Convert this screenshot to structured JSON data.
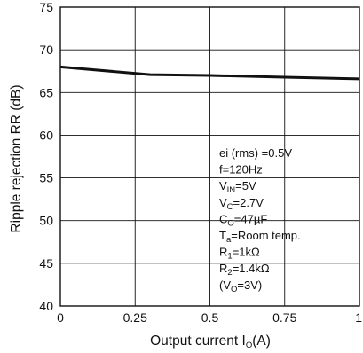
{
  "chart_data": {
    "type": "line",
    "xlabel": {
      "main": "Output current I",
      "sub": "O",
      "unit": "(A)"
    },
    "ylabel": "Ripple rejection RR  (dB)",
    "xlim": [
      0,
      1
    ],
    "ylim": [
      40,
      75
    ],
    "x_ticks": [
      "0",
      "0.25",
      "0.5",
      "0.75",
      "1"
    ],
    "y_ticks": [
      "40",
      "45",
      "50",
      "55",
      "60",
      "65",
      "70",
      "75"
    ],
    "grid": true,
    "line_color": "#111111",
    "series": [
      {
        "x": [
          0,
          0.3,
          0.5,
          0.75,
          1.0
        ],
        "y": [
          68.0,
          67.1,
          67.0,
          66.8,
          66.6
        ]
      }
    ],
    "annotations": [
      [
        {
          "t": "ei (rms) =0.5V"
        }
      ],
      [
        {
          "t": "f=120Hz"
        }
      ],
      [
        {
          "t": "V"
        },
        {
          "t": "IN",
          "sub": true
        },
        {
          "t": "=5V"
        }
      ],
      [
        {
          "t": "V"
        },
        {
          "t": "C",
          "sub": true
        },
        {
          "t": "=2.7V"
        }
      ],
      [
        {
          "t": "C"
        },
        {
          "t": "O",
          "sub": true
        },
        {
          "t": "=47µF"
        }
      ],
      [
        {
          "t": "T"
        },
        {
          "t": "a",
          "sub": true
        },
        {
          "t": "=Room temp."
        }
      ],
      [
        {
          "t": "R"
        },
        {
          "t": "1",
          "sub": true
        },
        {
          "t": "=1kΩ"
        }
      ],
      [
        {
          "t": "R"
        },
        {
          "t": "2",
          "sub": true
        },
        {
          "t": "=1.4kΩ"
        }
      ],
      [
        {
          "t": "(V"
        },
        {
          "t": "O",
          "sub": true
        },
        {
          "t": "=3V)"
        }
      ]
    ]
  }
}
